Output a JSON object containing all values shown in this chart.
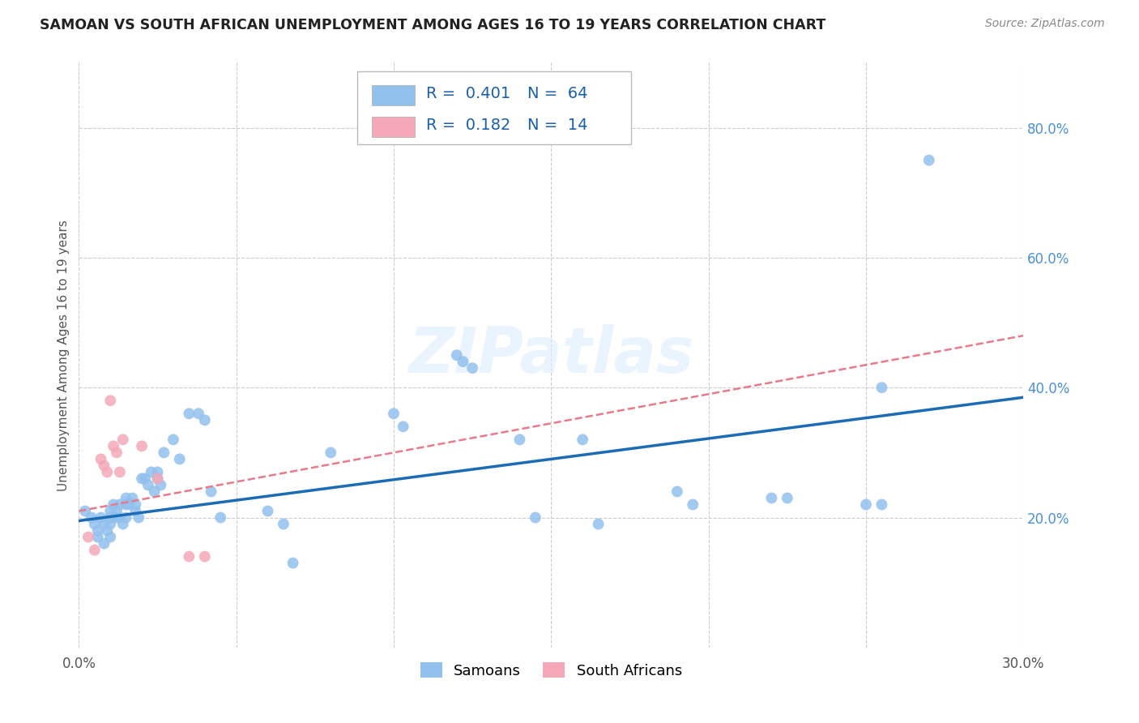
{
  "title": "SAMOAN VS SOUTH AFRICAN UNEMPLOYMENT AMONG AGES 16 TO 19 YEARS CORRELATION CHART",
  "source": "Source: ZipAtlas.com",
  "ylabel": "Unemployment Among Ages 16 to 19 years",
  "xlim": [
    0.0,
    0.3
  ],
  "ylim": [
    0.0,
    0.9
  ],
  "xticks": [
    0.0,
    0.05,
    0.1,
    0.15,
    0.2,
    0.25,
    0.3
  ],
  "yticks": [
    0.2,
    0.4,
    0.6,
    0.8
  ],
  "legend_label1": "Samoans",
  "legend_label2": "South Africans",
  "R1": 0.401,
  "N1": 64,
  "R2": 0.182,
  "N2": 14,
  "color_blue": "#92C0ED",
  "color_pink": "#F4A8B8",
  "color_blue_line": "#1B6CB5",
  "color_pink_line": "#E87B8B",
  "watermark": "ZIPatlas",
  "blue_scatter_x": [
    0.002,
    0.004,
    0.005,
    0.006,
    0.006,
    0.007,
    0.008,
    0.008,
    0.009,
    0.01,
    0.01,
    0.01,
    0.01,
    0.011,
    0.012,
    0.012,
    0.013,
    0.013,
    0.014,
    0.015,
    0.015,
    0.015,
    0.016,
    0.017,
    0.018,
    0.018,
    0.019,
    0.02,
    0.021,
    0.022,
    0.023,
    0.024,
    0.025,
    0.025,
    0.026,
    0.027,
    0.03,
    0.032,
    0.035,
    0.038,
    0.04,
    0.042,
    0.045,
    0.06,
    0.065,
    0.068,
    0.08,
    0.1,
    0.103,
    0.12,
    0.122,
    0.125,
    0.14,
    0.145,
    0.16,
    0.165,
    0.19,
    0.195,
    0.22,
    0.225,
    0.25,
    0.255,
    0.255,
    0.27
  ],
  "blue_scatter_y": [
    0.21,
    0.2,
    0.19,
    0.18,
    0.17,
    0.2,
    0.19,
    0.16,
    0.18,
    0.21,
    0.2,
    0.19,
    0.17,
    0.22,
    0.21,
    0.2,
    0.22,
    0.2,
    0.19,
    0.23,
    0.22,
    0.2,
    0.22,
    0.23,
    0.22,
    0.21,
    0.2,
    0.26,
    0.26,
    0.25,
    0.27,
    0.24,
    0.27,
    0.26,
    0.25,
    0.3,
    0.32,
    0.29,
    0.36,
    0.36,
    0.35,
    0.24,
    0.2,
    0.21,
    0.19,
    0.13,
    0.3,
    0.36,
    0.34,
    0.45,
    0.44,
    0.43,
    0.32,
    0.2,
    0.32,
    0.19,
    0.24,
    0.22,
    0.23,
    0.23,
    0.22,
    0.22,
    0.4,
    0.75
  ],
  "pink_scatter_x": [
    0.003,
    0.005,
    0.007,
    0.008,
    0.009,
    0.01,
    0.011,
    0.012,
    0.013,
    0.014,
    0.02,
    0.025,
    0.035,
    0.04
  ],
  "pink_scatter_y": [
    0.17,
    0.15,
    0.29,
    0.28,
    0.27,
    0.38,
    0.31,
    0.3,
    0.27,
    0.32,
    0.31,
    0.26,
    0.14,
    0.14
  ],
  "blue_line_x": [
    0.0,
    0.3
  ],
  "blue_line_y": [
    0.195,
    0.385
  ],
  "pink_line_x": [
    0.0,
    0.3
  ],
  "pink_line_y": [
    0.21,
    0.48
  ],
  "background_color": "#ffffff",
  "grid_color": "#cccccc"
}
